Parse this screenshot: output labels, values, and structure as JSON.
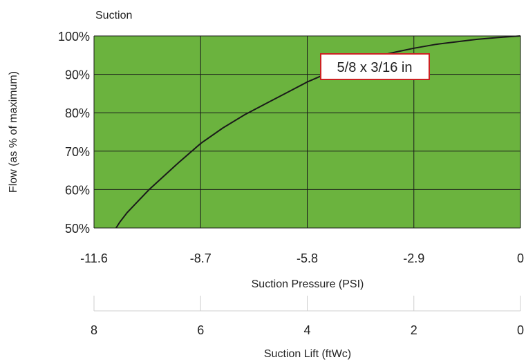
{
  "chart_data": {
    "type": "line",
    "title": "Suction",
    "xlabel": "Suction Pressure (PSI)",
    "ylabel": "Flow (as % of maximum)",
    "secondary_xlabel": "Suction Lift (ftWc)",
    "xlim": [
      -11.6,
      0
    ],
    "ylim": [
      50,
      100
    ],
    "x_ticks": [
      "-11.6",
      "-8.7",
      "-5.8",
      "-2.9",
      "0"
    ],
    "x_tick_values": [
      -11.6,
      -8.7,
      -5.8,
      -2.9,
      0
    ],
    "y_ticks": [
      "50%",
      "60%",
      "70%",
      "80%",
      "90%",
      "100%"
    ],
    "y_tick_values": [
      50,
      60,
      70,
      80,
      90,
      100
    ],
    "secondary_x_ticks": [
      "8",
      "6",
      "4",
      "2",
      "0"
    ],
    "secondary_x_tick_values": [
      8,
      6,
      4,
      2,
      0
    ],
    "grid": true,
    "plot_background": "#6bb33e",
    "grid_color": "#1a1a1a",
    "line_color": "#1a1a1a",
    "annotation": {
      "text": "5/8 x 3/16 in",
      "border_color": "#cc2222"
    },
    "series": [
      {
        "name": "5/8 x 3/16 in",
        "x": [
          -11.0,
          -10.9,
          -10.7,
          -10.4,
          -10.1,
          -9.7,
          -9.3,
          -8.7,
          -8.1,
          -7.5,
          -6.9,
          -6.3,
          -5.8,
          -5.2,
          -4.6,
          -4.0,
          -3.4,
          -2.9,
          -2.3,
          -1.7,
          -1.2,
          -0.6,
          0
        ],
        "y": [
          50,
          51.5,
          54,
          57,
          60,
          63.5,
          67,
          72,
          76,
          79.5,
          82.5,
          85.5,
          88,
          90.5,
          92.5,
          94.5,
          95.8,
          96.8,
          97.8,
          98.5,
          99.1,
          99.6,
          100
        ]
      }
    ]
  }
}
